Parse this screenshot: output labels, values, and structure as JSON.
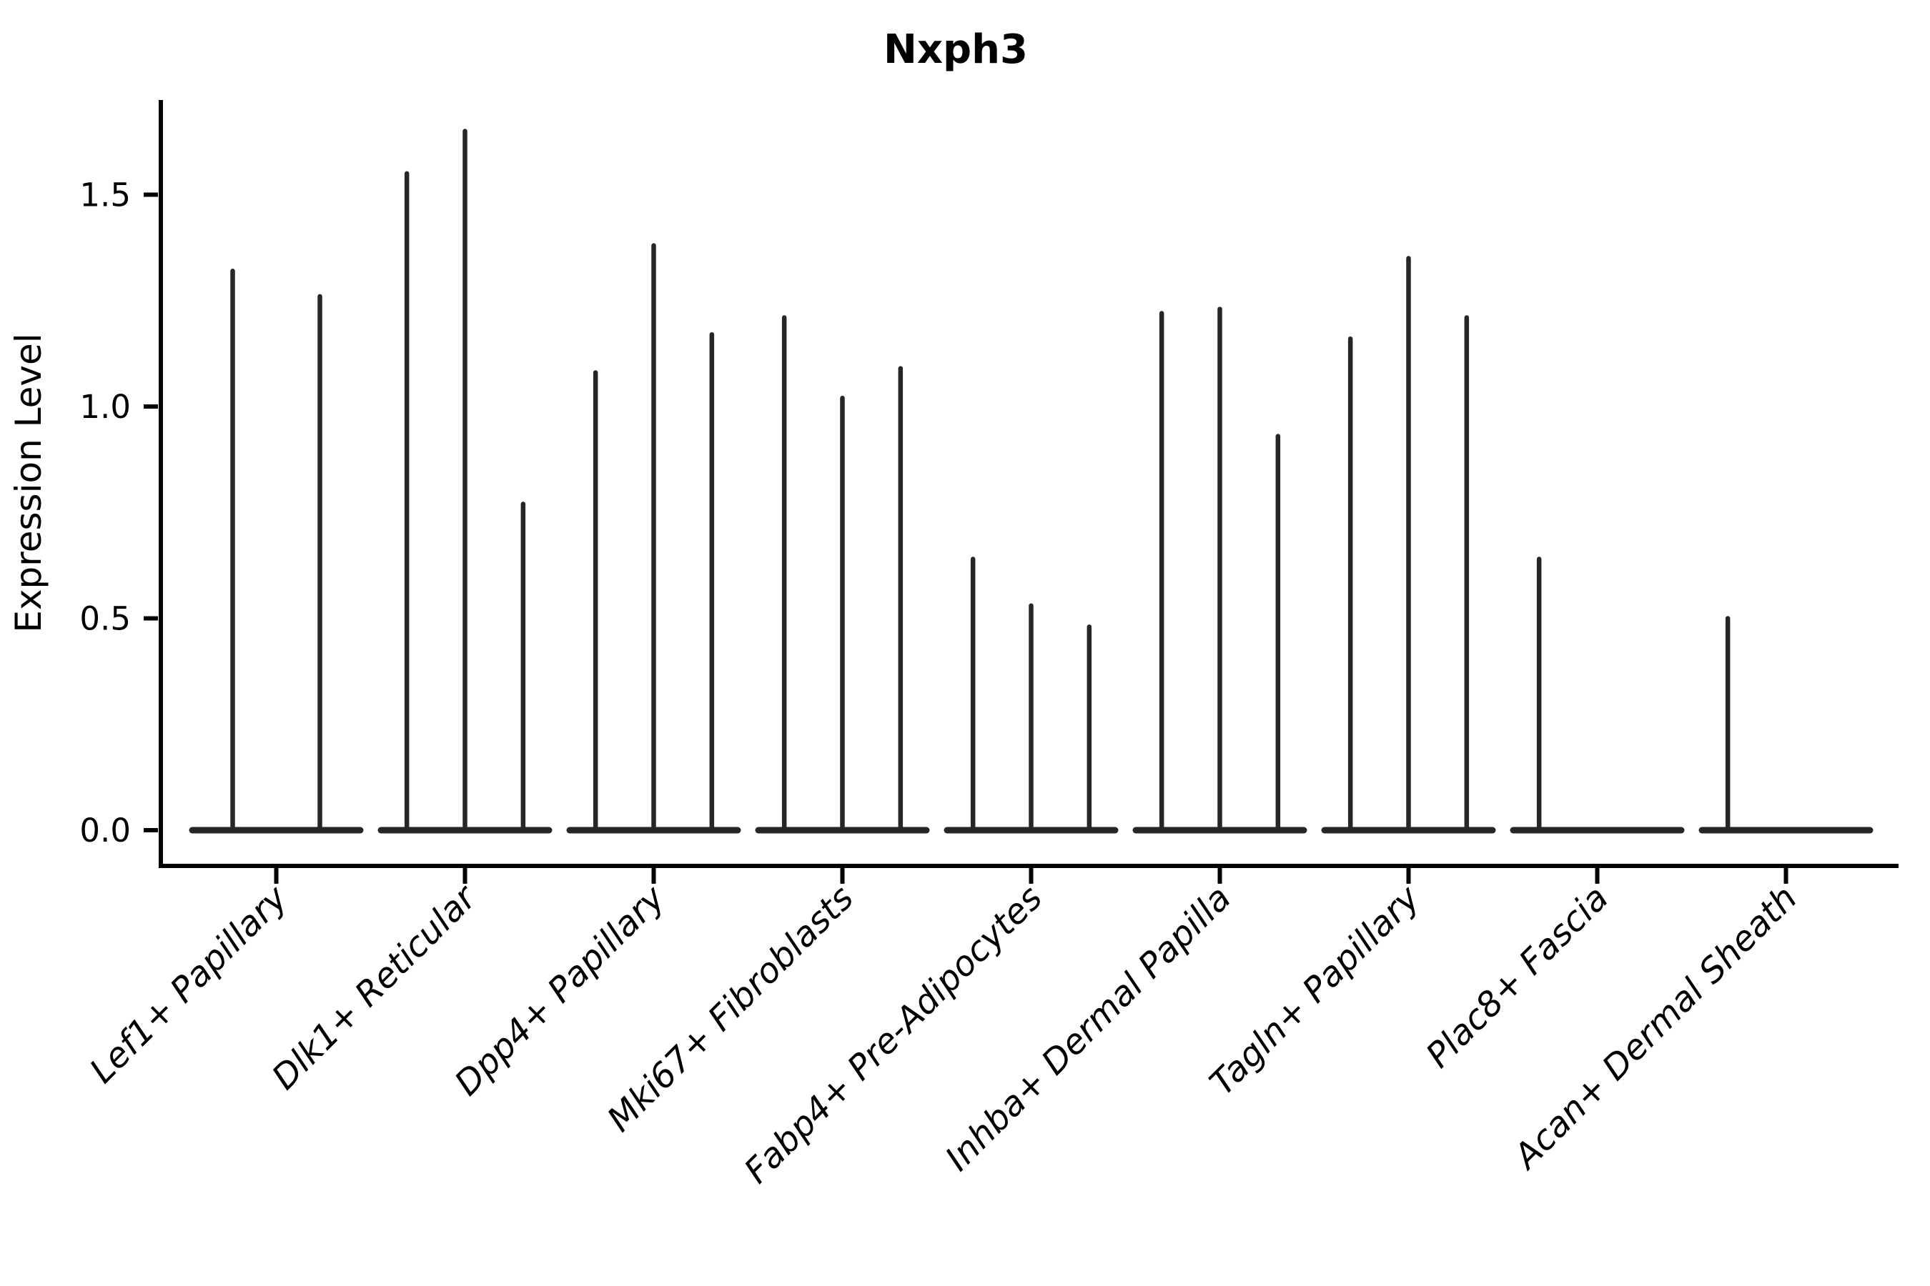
{
  "title": "Nxph3",
  "axes": {
    "ylabel": "Expression Level",
    "xlabel": ""
  },
  "chart_data": {
    "type": "violin",
    "title": "Nxph3",
    "subtitle": "",
    "xlabel": "",
    "ylabel": "Expression Level",
    "grid": false,
    "legend_position": "none",
    "yticks": [
      0.0,
      0.5,
      1.0,
      1.5
    ],
    "ylim": [
      -0.08,
      1.72
    ],
    "x_label_rotation_deg": 45,
    "violin_style": "extremely thin spikes with flat wide bases at zero (sparse single-cell expression)",
    "line_color": "#262626",
    "axis_color": "#000000",
    "background_color": "#ffffff",
    "categories": [
      "Lef1+ Papillary",
      "Dlk1+ Reticular",
      "Dpp4+ Papillary",
      "Mki67+ Fibroblasts",
      "Fabp4+ Pre-Adipocytes",
      "Inhba+ Dermal Papilla",
      "Tagln+ Papillary",
      "Plac8+ Fascia",
      "Acan+ Dermal Sheath"
    ],
    "groups": [
      {
        "category": "Lef1+ Papillary",
        "violin_max_values": [
          1.32,
          1.26
        ]
      },
      {
        "category": "Dlk1+ Reticular",
        "violin_max_values": [
          1.55,
          1.65,
          0.77
        ]
      },
      {
        "category": "Dpp4+ Papillary",
        "violin_max_values": [
          1.08,
          1.38,
          1.17
        ]
      },
      {
        "category": "Mki67+ Fibroblasts",
        "violin_max_values": [
          1.21,
          1.02,
          1.09
        ]
      },
      {
        "category": "Fabp4+ Pre-Adipocytes",
        "violin_max_values": [
          0.64,
          0.53,
          0.48
        ]
      },
      {
        "category": "Inhba+ Dermal Papilla",
        "violin_max_values": [
          1.22,
          1.23,
          0.93
        ]
      },
      {
        "category": "Tagln+ Papillary",
        "violin_max_values": [
          1.16,
          1.35,
          1.21
        ]
      },
      {
        "category": "Plac8+ Fascia",
        "violin_max_values": [
          0.64,
          0.0,
          0.0
        ]
      },
      {
        "category": "Acan+ Dermal Sheath",
        "violin_max_values": [
          0.5,
          0.0,
          0.0
        ]
      }
    ]
  }
}
